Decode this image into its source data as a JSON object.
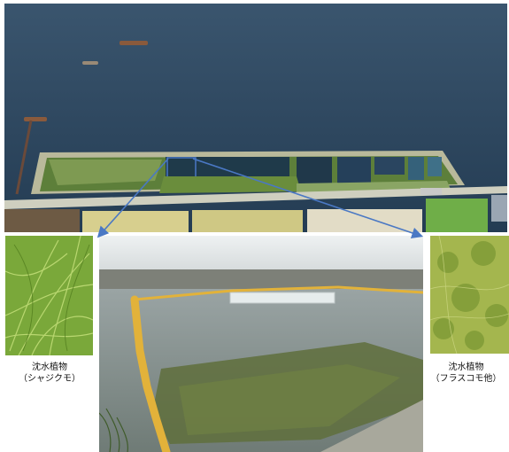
{
  "left_caption": {
    "line1": "沈水植物",
    "line2": "（シャジクモ）"
  },
  "right_caption": {
    "line1": "沈水植物",
    "line2": "（フラスコモ他）"
  },
  "colors": {
    "lake": "#2d4a63",
    "callout_line": "#4a78c4",
    "plant_green": "#6f9e2a",
    "boom_yellow": "#e2b23a"
  }
}
